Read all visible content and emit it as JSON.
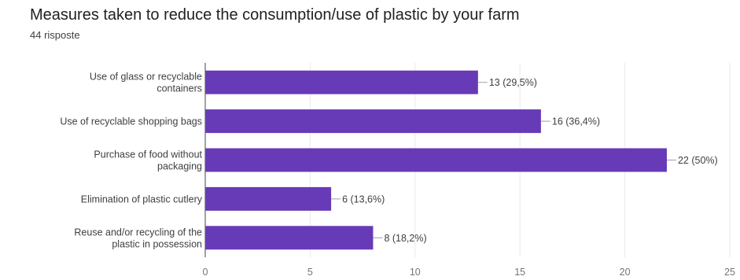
{
  "header": {
    "title": "Measures taken to reduce the consumption/use of plastic by your farm",
    "subtitle": "44 risposte"
  },
  "colors": {
    "bar": "#673ab7",
    "axis": "#5f6368",
    "grid": "#e8eaed",
    "leader": "#9e9e9e"
  },
  "chart_data": {
    "type": "bar",
    "orientation": "horizontal",
    "title": "Measures taken to reduce the consumption/use of plastic by your farm",
    "categories": [
      [
        "Use of glass or recyclable",
        "containers"
      ],
      [
        "Use of recyclable shopping bags"
      ],
      [
        "Purchase of food without",
        "packaging"
      ],
      [
        "Elimination of plastic cutlery"
      ],
      [
        "Reuse and/or recycling of the",
        "plastic in possession"
      ]
    ],
    "values": [
      13,
      16,
      22,
      6,
      8
    ],
    "data_labels": [
      "13 (29,5%)",
      "16 (36,4%)",
      "22 (50%)",
      "6 (13,6%)",
      "8 (18,2%)"
    ],
    "xlim": [
      0,
      25
    ],
    "xticks": [
      0,
      5,
      10,
      15,
      20,
      25
    ],
    "grid": true,
    "legend": "none"
  }
}
